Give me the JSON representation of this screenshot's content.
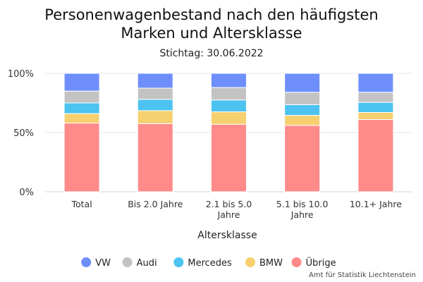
{
  "chart_data": {
    "type": "bar",
    "stacked": true,
    "percent": true,
    "title_line1": "Personenwagenbestand nach den häufigsten",
    "title_line2": "Marken und Altersklasse",
    "subtitle": "Stichtag: 30.06.2022",
    "xlabel": "Altersklasse",
    "ylabel": "",
    "ylim": [
      0,
      100
    ],
    "yticks": [
      "0%",
      "50%",
      "100%"
    ],
    "categories": [
      [
        "Total"
      ],
      [
        "Bis 2.0 Jahre"
      ],
      [
        "2.1 bis  5.0",
        "Jahre"
      ],
      [
        "5.1 bis 10.0",
        "Jahre"
      ],
      [
        "10.1+ Jahre"
      ]
    ],
    "series": [
      {
        "name": "Übrige",
        "color": "#ff8a8a",
        "values": [
          58,
          57.5,
          57,
          56,
          61
        ]
      },
      {
        "name": "BMW",
        "color": "#f6d06e",
        "values": [
          8,
          11,
          10.5,
          8.5,
          6
        ]
      },
      {
        "name": "Mercedes",
        "color": "#4cc3f0",
        "values": [
          9,
          9.5,
          10,
          9,
          8.5
        ]
      },
      {
        "name": "Audi",
        "color": "#c3c3c3",
        "values": [
          10,
          9.5,
          10.5,
          10.5,
          8.5
        ]
      },
      {
        "name": "VW",
        "color": "#6e8ffb",
        "values": [
          15,
          12.5,
          12,
          16,
          16
        ]
      }
    ],
    "legend": {
      "placement": "bottom",
      "order": [
        "VW",
        "Audi",
        "Mercedes",
        "BMW",
        "Übrige"
      ]
    },
    "grid": true
  },
  "source": "Amt für Statistik Liechtenstein"
}
